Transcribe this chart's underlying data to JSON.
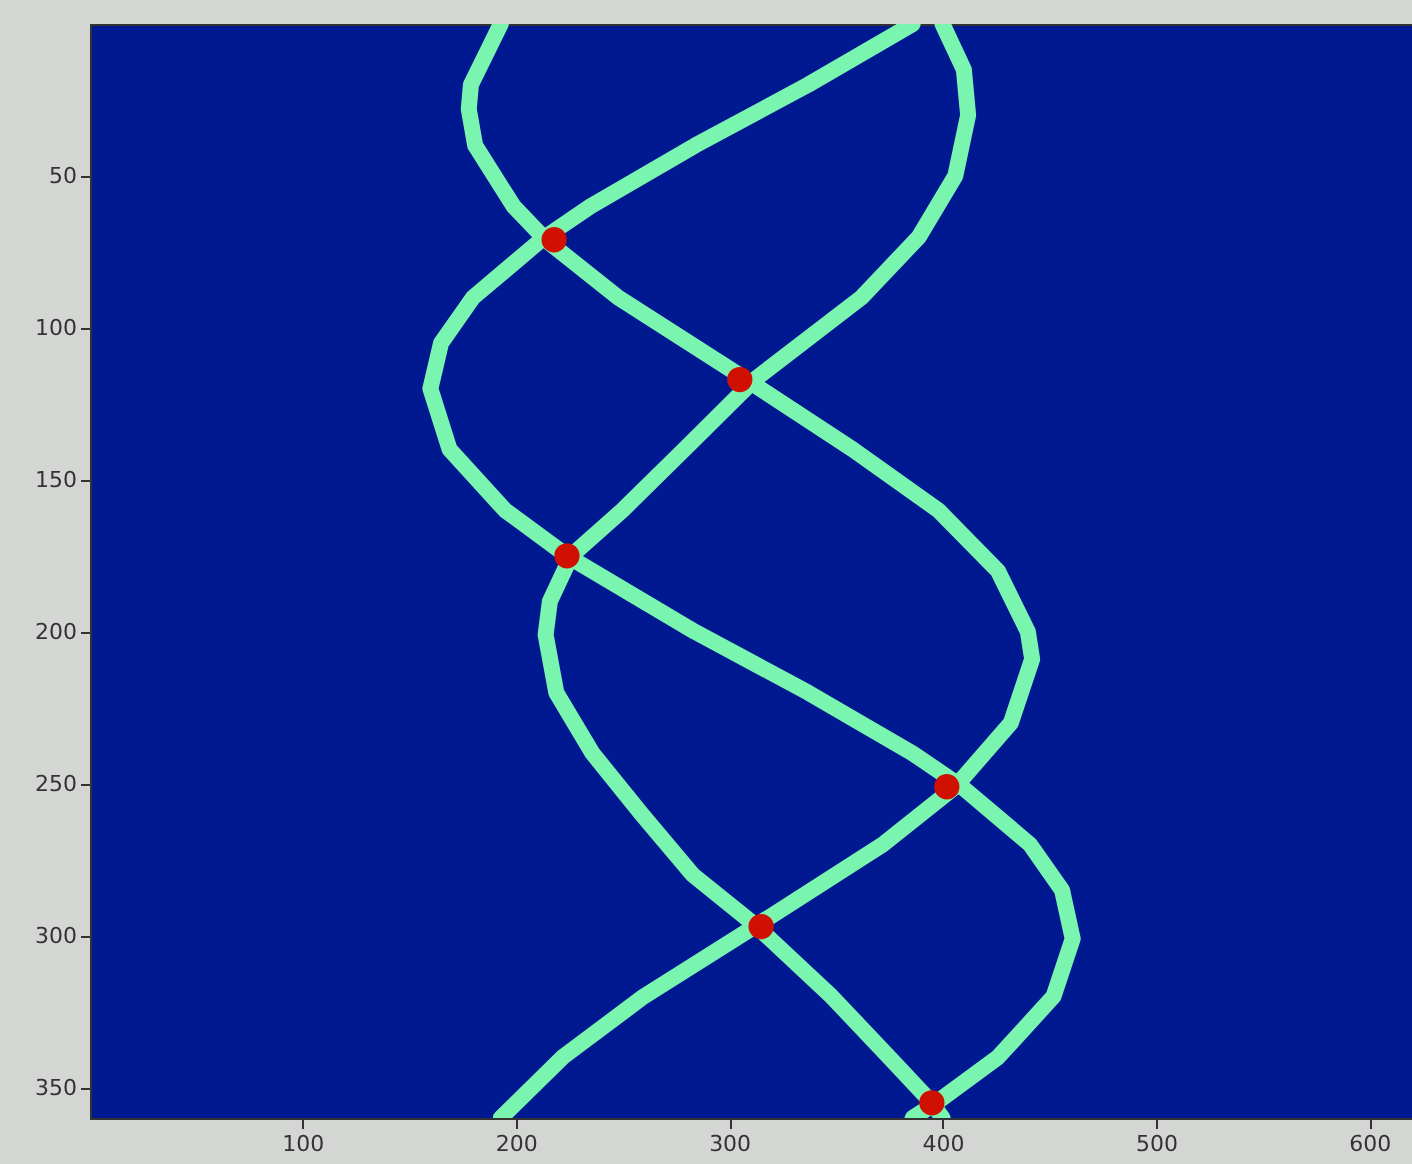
{
  "chart_data": {
    "type": "line",
    "xlim": [
      0.5,
      620
    ],
    "ylim": [
      360,
      0
    ],
    "xticks": [
      100,
      200,
      300,
      400,
      500,
      600
    ],
    "yticks": [
      50,
      100,
      150,
      200,
      250,
      300,
      350
    ],
    "grid": false,
    "series": [
      {
        "color": "#7af5b0",
        "x": [
          193,
          179,
          178,
          181,
          199,
          214,
          248,
          308,
          358,
          398,
          426,
          440,
          442,
          432,
          406,
          372,
          312,
          260,
          222,
          193
        ],
        "values": [
          0,
          20,
          28,
          40,
          60,
          71,
          90,
          117,
          140,
          160,
          180,
          200,
          209,
          230,
          251,
          270,
          297,
          320,
          340,
          360
        ]
      },
      {
        "color": "#7af5b0",
        "x": [
          400,
          410,
          412,
          406,
          389,
          362,
          312,
          279,
          250,
          226,
          216,
          214,
          219,
          236,
          259,
          283,
          313,
          348,
          375,
          395,
          400
        ],
        "values": [
          0,
          15,
          30,
          50,
          70,
          90,
          117,
          140,
          160,
          175,
          190,
          201,
          220,
          240,
          260,
          280,
          297,
          320,
          340,
          355,
          360
        ]
      },
      {
        "color": "#7af5b0",
        "x": [
          386,
          337,
          284,
          235,
          212,
          180,
          165,
          160,
          169,
          195,
          224,
          284,
          337,
          386,
          409,
          441,
          456,
          461,
          452,
          426,
          397,
          386
        ],
        "values": [
          0,
          20,
          40,
          60,
          71,
          90,
          105,
          120,
          140,
          160,
          175,
          200,
          220,
          240,
          251,
          270,
          285,
          301,
          320,
          340,
          355,
          360
        ]
      },
      {
        "type": "scatter",
        "color": "#d01000",
        "x": [
          218,
          305,
          224,
          402,
          315,
          395
        ],
        "values": [
          71,
          117,
          175,
          251,
          297,
          355
        ]
      }
    ]
  }
}
